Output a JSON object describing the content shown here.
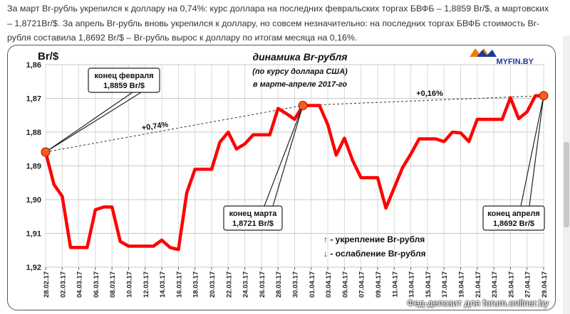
{
  "intro_text": "За март Br-рубль укрепился к доллару на 0,74%: курс доллара на последних февральских торгах БВФБ – 1,8859 Br/$, а мартовских – 1,8721Br/$. За апрель Br-рубль вновь укрепился к доллару, но совсем незначительно: на последних торгах БВФБ стоимость Br-рубля  составила 1,8692 Br/$ – Br-рубль вырос к доллару по итогам месяца на 0,16%.",
  "logo": {
    "text": "MYFIN.BY"
  },
  "watermark": "Фед-депозит для forum.onliner.by",
  "colors": {
    "series": "#ff0000",
    "marker": "#ff5a1e",
    "logo_blue": "#1a3a9c",
    "logo_orange": "#f07d00"
  },
  "chart_data": {
    "type": "line",
    "title": "динамика Br-рубля",
    "subtitle": "(по курсу доллара США)",
    "subtitle2": "в марте-апреле 2017-го",
    "ylabel": "Br/$",
    "ylim": [
      1.86,
      1.92
    ],
    "y_inverted": true,
    "yticks": [
      "1,86",
      "1,87",
      "1,88",
      "1,89",
      "1,90",
      "1,91",
      "1,92"
    ],
    "grid": true,
    "x_tick_labels": [
      "28.02.17",
      "02.03.17",
      "04.03.17",
      "06.03.17",
      "08.03.17",
      "10.03.17",
      "12.03.17",
      "14.03.17",
      "16.03.17",
      "18.03.17",
      "20.03.17",
      "22.03.17",
      "24.03.17",
      "26.03.17",
      "28.03.17",
      "30.03.17",
      "01.04.17",
      "03.04.17",
      "05.04.17",
      "07.04.17",
      "09.04.17",
      "11.04.17",
      "13.04.17",
      "15.04.17",
      "17.04.17",
      "19.04.17",
      "21.04.17",
      "23.04.17",
      "25.04.17",
      "27.04.17",
      "29.04.17"
    ],
    "series": [
      {
        "values": [
          1.8859,
          1.8955,
          1.899,
          1.9142,
          1.9142,
          1.9142,
          1.903,
          1.9022,
          1.9022,
          1.9124,
          1.9138,
          1.9138,
          1.9138,
          1.9138,
          1.912,
          1.9142,
          1.9148,
          1.898,
          1.891,
          1.891,
          1.891,
          1.883,
          1.88,
          1.885,
          1.8835,
          1.8808,
          1.8808,
          1.8808,
          1.873,
          1.8745,
          1.8762,
          1.8721,
          1.8721,
          1.8721,
          1.8778,
          1.8868,
          1.8818,
          1.8885,
          1.8935,
          1.8935,
          1.8935,
          1.9025,
          1.8965,
          1.8905,
          1.8865,
          1.882,
          1.882,
          1.882,
          1.8828,
          1.88,
          1.8802,
          1.8828,
          1.8762,
          1.8762,
          1.8762,
          1.8762,
          1.8698,
          1.876,
          1.874,
          1.8692,
          1.8692
        ]
      }
    ],
    "markers": [
      {
        "index": 0,
        "value": 1.8859,
        "label1": "конец февраля",
        "label2": "1,8859 Br/$"
      },
      {
        "index": 31,
        "value": 1.8721,
        "label1": "конец марта",
        "label2": "1,8721 Br/$"
      },
      {
        "index": 60,
        "value": 1.8692,
        "label1": "конец апреля",
        "label2": "1,8692 Br/$"
      }
    ],
    "trend_labels": [
      "+0,74%",
      "+0,16%"
    ],
    "legend": [
      "↑ - укрепление Br-рубля",
      "↓ - ослабление Br-рубля"
    ]
  }
}
